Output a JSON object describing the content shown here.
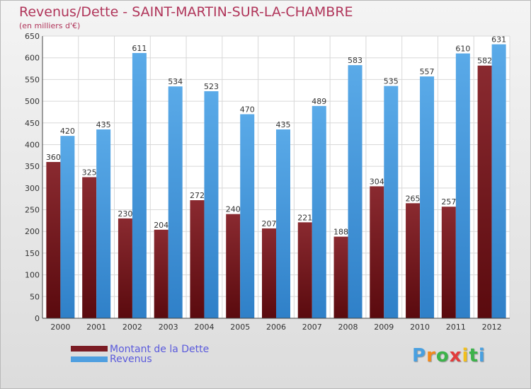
{
  "chart_data": {
    "type": "bar",
    "title": "Revenus/Dette - SAINT-MARTIN-SUR-LA-CHAMBRE",
    "subtitle": "(en milliers d'€)",
    "categories": [
      "2000",
      "2001",
      "2002",
      "2003",
      "2004",
      "2005",
      "2006",
      "2007",
      "2008",
      "2009",
      "2010",
      "2011",
      "2012"
    ],
    "series": [
      {
        "name": "Montant de la Dette",
        "color": "#7b1c24",
        "values": [
          360,
          325,
          230,
          204,
          272,
          240,
          207,
          221,
          188,
          304,
          265,
          257,
          582
        ]
      },
      {
        "name": "Revenus",
        "color": "#4f9fe0",
        "values": [
          420,
          435,
          611,
          534,
          523,
          470,
          435,
          489,
          583,
          535,
          557,
          610,
          631
        ]
      }
    ],
    "yticks": [
      0,
      50,
      100,
      150,
      200,
      250,
      300,
      350,
      400,
      450,
      500,
      550,
      600,
      650
    ],
    "ylim": [
      0,
      650
    ],
    "grid": true,
    "legend_position": "bottom-left"
  },
  "logo": {
    "letters": [
      "P",
      "r",
      "o",
      "x",
      "i",
      "t",
      "i"
    ],
    "colors": [
      "#49a0e0",
      "#f28a1c",
      "#3cb34a",
      "#e23b3b",
      "#f2c01c",
      "#3cb34a",
      "#49a0e0"
    ]
  }
}
